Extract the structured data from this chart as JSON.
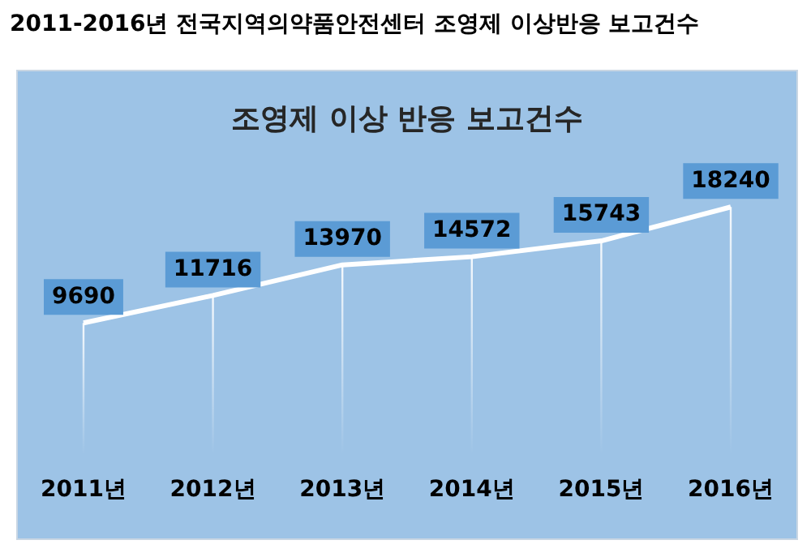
{
  "chart_data": {
    "type": "line",
    "title": "2011-2016년 전국지역의약품안전센터 조영제 이상반응 보고건수",
    "subtitle": "조영제 이상 반응 보고건수",
    "categories": [
      "2011년",
      "2012년",
      "2013년",
      "2014년",
      "2015년",
      "2016년"
    ],
    "series": [
      {
        "color": "#ffffff",
        "values": [
          9690,
          11716,
          13970,
          14572,
          15743,
          18240
        ]
      }
    ],
    "data_labels": true,
    "marker": "none",
    "grid": "x",
    "legend": false
  }
}
